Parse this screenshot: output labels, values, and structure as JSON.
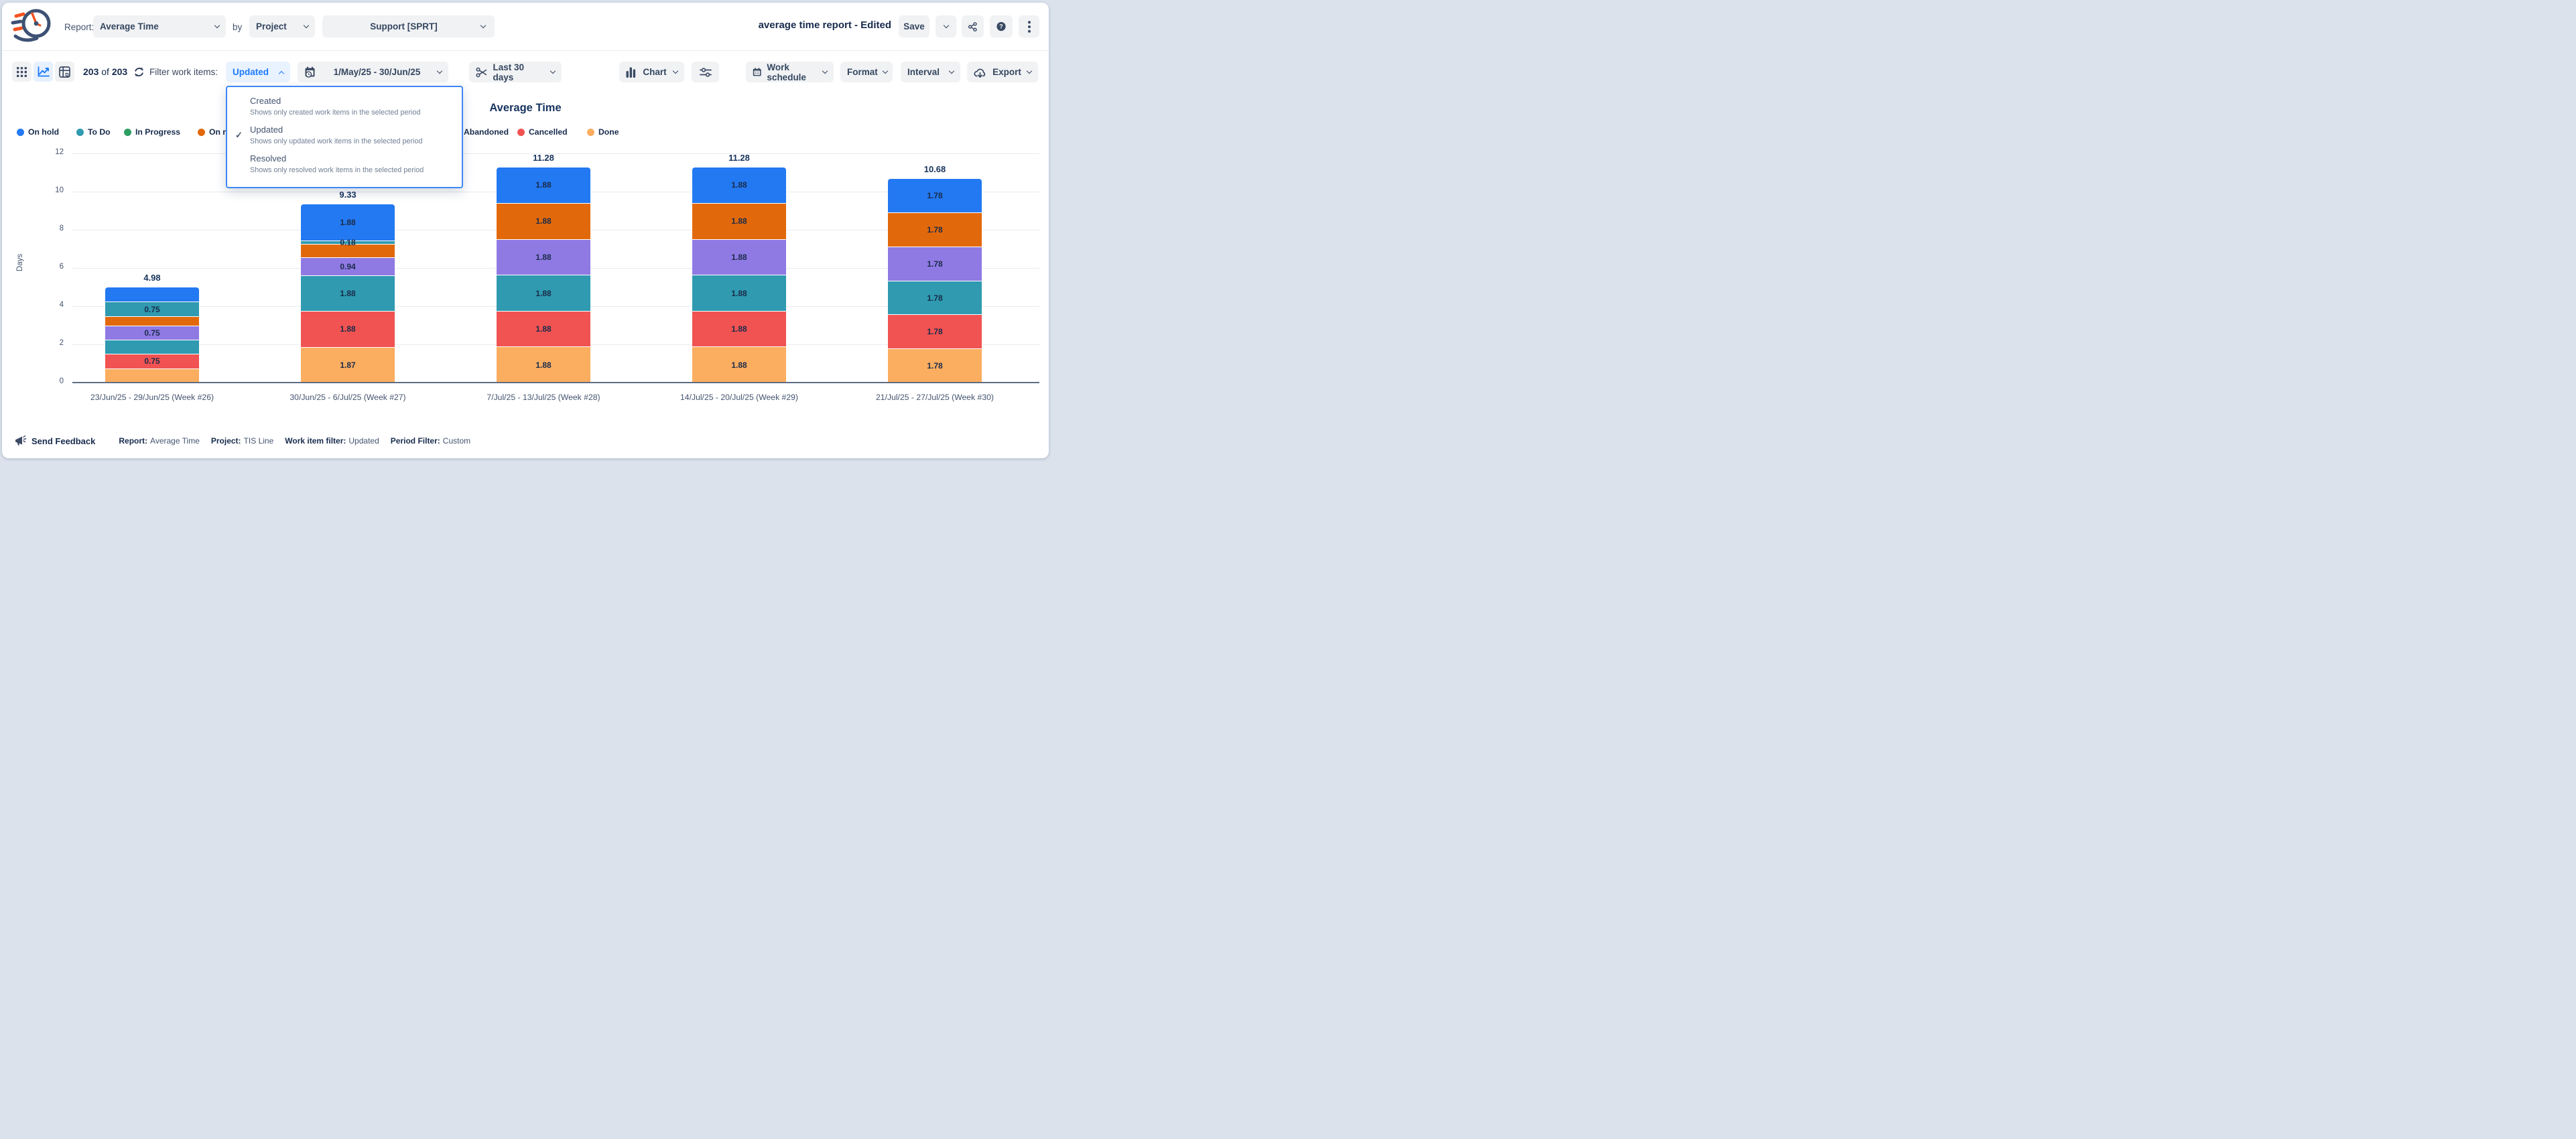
{
  "header": {
    "report_label": "Report:",
    "report_value": "Average Time",
    "by_label": "by",
    "group_by_value": "Project",
    "project_value": "Support [SPRT]",
    "doc_title": "average time report - Edited",
    "save_label": "Save"
  },
  "toolbar": {
    "count_current": "203",
    "count_of": "of",
    "count_total": "203",
    "filter_label": "Filter work items:",
    "filter_value": "Updated",
    "date_range": "1/May/25 - 30/Jun/25",
    "trim_value": "Last 30 days",
    "chart_label": "Chart",
    "work_schedule_label": "Work schedule",
    "format_label": "Format",
    "interval_label": "Interval",
    "export_label": "Export"
  },
  "filter_dropdown": {
    "options": [
      {
        "title": "Created",
        "desc": "Shows only created work items in the selected period",
        "selected": false
      },
      {
        "title": "Updated",
        "desc": "Shows only updated work items in the selected period",
        "selected": true
      },
      {
        "title": "Resolved",
        "desc": "Shows only resolved work items in the selected period",
        "selected": false
      }
    ]
  },
  "chart_data": {
    "type": "bar",
    "variant": "stacked",
    "title": "Average Time",
    "ylabel": "Days",
    "ylim": [
      0,
      12
    ],
    "yticks": [
      0,
      2,
      4,
      6,
      8,
      10,
      12
    ],
    "grid": true,
    "legend_position": "top",
    "legend": [
      {
        "label": "On hold",
        "color": "#2379F1"
      },
      {
        "label": "To Do",
        "color": "#2F9AB0"
      },
      {
        "label": "In Progress",
        "color": "#2E9E62"
      },
      {
        "label": "On review",
        "color": "#E2690B"
      },
      {
        "label": "Abandoned",
        "color": "#2F9AB0"
      },
      {
        "label": "Cancelled",
        "color": "#F05352"
      },
      {
        "label": "Done",
        "color": "#FBAD60"
      }
    ],
    "categories": [
      "23/Jun/25 - 29/Jun/25 (Week #26)",
      "30/Jun/25 - 6/Jul/25 (Week #27)",
      "7/Jul/25 - 13/Jul/25 (Week #28)",
      "14/Jul/25 - 20/Jul/25 (Week #29)",
      "21/Jul/25 - 27/Jul/25 (Week #30)"
    ],
    "totals": [
      "4.98",
      "9.33",
      "11.28",
      "11.28",
      "10.68"
    ],
    "bars": [
      {
        "total": "4.98",
        "segments_top_to_bottom": [
          {
            "color": "#2379F1",
            "value": 0.75,
            "label": ""
          },
          {
            "color": "#2F9AB0",
            "value": 0.75,
            "label": "0.75"
          },
          {
            "color": "#E2690B",
            "value": 0.5,
            "label": ""
          },
          {
            "color": "#8F7AE4",
            "value": 0.75,
            "label": "0.75"
          },
          {
            "color": "#2F9AB0",
            "value": 0.73,
            "label": ""
          },
          {
            "color": "#F05352",
            "value": 0.75,
            "label": "0.75"
          },
          {
            "color": "#FBAD60",
            "value": 0.75,
            "label": ""
          }
        ]
      },
      {
        "total": "9.33",
        "segments_top_to_bottom": [
          {
            "color": "#2379F1",
            "value": 1.88,
            "label": "1.88"
          },
          {
            "color": "#2F9AB0",
            "value": 0.18,
            "label": "0.18"
          },
          {
            "color": "#E2690B",
            "value": 0.7,
            "label": ""
          },
          {
            "color": "#8F7AE4",
            "value": 0.94,
            "label": "0.94"
          },
          {
            "color": "#2F9AB0",
            "value": 1.88,
            "label": "1.88"
          },
          {
            "color": "#F05352",
            "value": 1.88,
            "label": "1.88"
          },
          {
            "color": "#FBAD60",
            "value": 1.87,
            "label": "1.87"
          }
        ]
      },
      {
        "total": "11.28",
        "segments_top_to_bottom": [
          {
            "color": "#2379F1",
            "value": 1.88,
            "label": "1.88"
          },
          {
            "color": "#E2690B",
            "value": 1.88,
            "label": "1.88"
          },
          {
            "color": "#8F7AE4",
            "value": 1.88,
            "label": "1.88"
          },
          {
            "color": "#2F9AB0",
            "value": 1.88,
            "label": "1.88"
          },
          {
            "color": "#F05352",
            "value": 1.88,
            "label": "1.88"
          },
          {
            "color": "#FBAD60",
            "value": 1.88,
            "label": "1.88"
          }
        ]
      },
      {
        "total": "11.28",
        "segments_top_to_bottom": [
          {
            "color": "#2379F1",
            "value": 1.88,
            "label": "1.88"
          },
          {
            "color": "#E2690B",
            "value": 1.88,
            "label": "1.88"
          },
          {
            "color": "#8F7AE4",
            "value": 1.88,
            "label": "1.88"
          },
          {
            "color": "#2F9AB0",
            "value": 1.88,
            "label": "1.88"
          },
          {
            "color": "#F05352",
            "value": 1.88,
            "label": "1.88"
          },
          {
            "color": "#FBAD60",
            "value": 1.88,
            "label": "1.88"
          }
        ]
      },
      {
        "total": "10.68",
        "segments_top_to_bottom": [
          {
            "color": "#2379F1",
            "value": 1.78,
            "label": "1.78"
          },
          {
            "color": "#E2690B",
            "value": 1.78,
            "label": "1.78"
          },
          {
            "color": "#8F7AE4",
            "value": 1.78,
            "label": "1.78"
          },
          {
            "color": "#2F9AB0",
            "value": 1.78,
            "label": "1.78"
          },
          {
            "color": "#F05352",
            "value": 1.78,
            "label": "1.78"
          },
          {
            "color": "#FBAD60",
            "value": 1.78,
            "label": "1.78"
          }
        ]
      }
    ]
  },
  "footer": {
    "feedback": "Send Feedback",
    "meta": [
      {
        "label": "Report:",
        "value": "Average Time"
      },
      {
        "label": "Project:",
        "value": "TIS Line"
      },
      {
        "label": "Work item filter:",
        "value": "Updated"
      },
      {
        "label": "Period Filter:",
        "value": "Custom"
      }
    ]
  },
  "colors": {
    "accent_blue": "#1D7AFC",
    "navy_text": "#172B4D",
    "slate_text": "#44546F",
    "chip_bg": "#F1F2F4",
    "chip_active_bg": "#E9F2FF",
    "panel_border": "#3E87F6",
    "axis_line": "#5E6C84",
    "gridline": "#E9EBF1"
  }
}
